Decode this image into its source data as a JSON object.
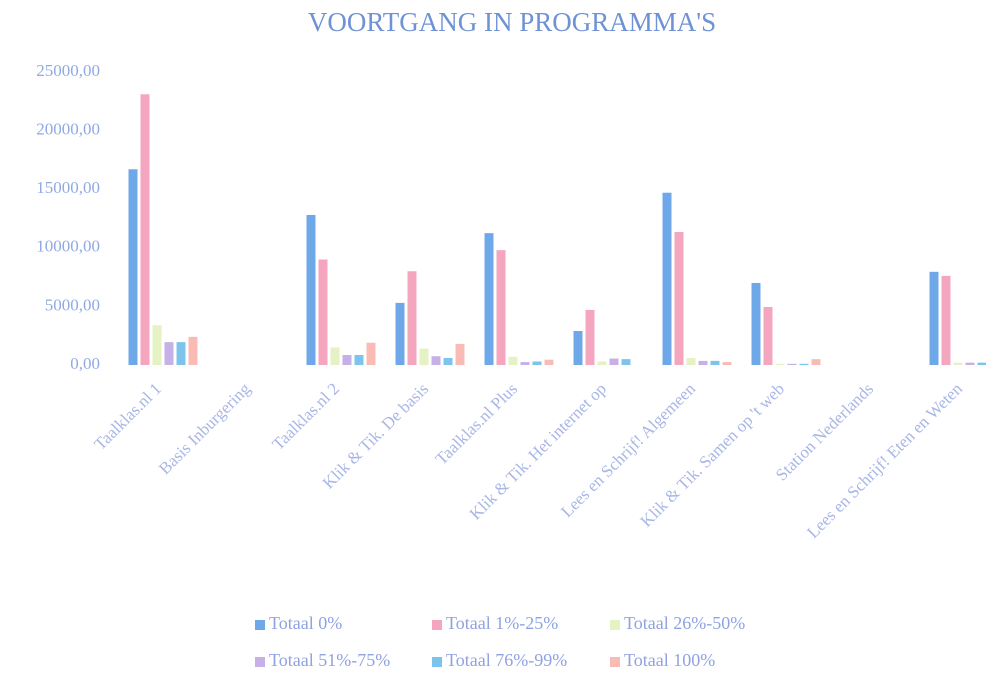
{
  "chart_data": {
    "type": "bar",
    "title": "VOORTGANG IN PROGRAMMA'S",
    "categories": [
      "Taalklas.nl 1",
      "Basis Inburgering",
      "Taalklas.nl 2",
      "Klik & Tik. De basis",
      "Taalklas.nl Plus",
      "Klik & Tik. Het internet op",
      "Lees en Schrijf! Algemeen",
      "Klik & Tik. Samen op 't web",
      "Station Nederlands",
      "Lees en Schrijf! Eten en Weten"
    ],
    "series": [
      {
        "name": "Totaal 0%",
        "color": "#6fa8e8",
        "values": [
          16700,
          0,
          12800,
          5300,
          11250,
          2900,
          14700,
          7000,
          0,
          7950
        ]
      },
      {
        "name": "Totaal 1%-25%",
        "color": "#f4a6bf",
        "values": [
          23100,
          0,
          9000,
          8000,
          9800,
          4700,
          11350,
          4950,
          0,
          7600
        ]
      },
      {
        "name": "Totaal 26%-50%",
        "color": "#e4f2c4",
        "values": [
          3400,
          0,
          1500,
          1400,
          700,
          300,
          600,
          100,
          0,
          200
        ]
      },
      {
        "name": "Totaal 51%-75%",
        "color": "#c5b0e8",
        "values": [
          1950,
          0,
          850,
          750,
          250,
          550,
          350,
          100,
          0,
          200
        ]
      },
      {
        "name": "Totaal 76%-99%",
        "color": "#7cc4ec",
        "values": [
          1950,
          0,
          850,
          600,
          300,
          500,
          350,
          100,
          0,
          200
        ]
      },
      {
        "name": "Totaal 100%",
        "color": "#f9bcb5",
        "values": [
          2400,
          0,
          1900,
          1800,
          450,
          0,
          250,
          500,
          0,
          100
        ]
      }
    ],
    "ylim": [
      0,
      25000
    ],
    "yticks": [
      {
        "value": 0,
        "label": "0,00"
      },
      {
        "value": 5000,
        "label": "5000,00"
      },
      {
        "value": 10000,
        "label": "10000,00"
      },
      {
        "value": 15000,
        "label": "15000,00"
      },
      {
        "value": 20000,
        "label": "20000,00"
      },
      {
        "value": 25000,
        "label": "25000,00"
      }
    ],
    "grid": false,
    "legend": "bottom"
  }
}
